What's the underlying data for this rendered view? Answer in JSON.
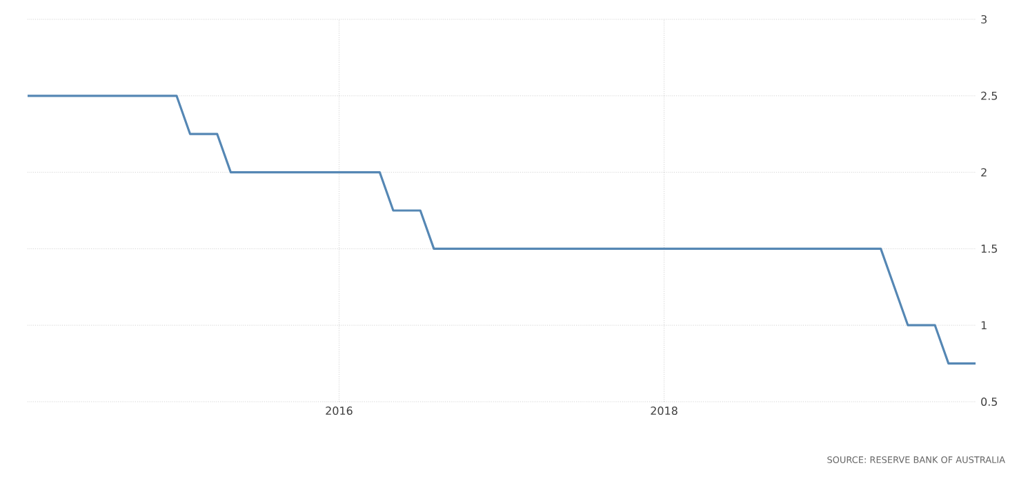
{
  "chart_data": {
    "type": "line",
    "x": [
      "2014-02",
      "2015-01",
      "2015-02",
      "2015-04",
      "2015-05",
      "2016-04",
      "2016-05",
      "2016-07",
      "2016-08",
      "2019-05",
      "2019-06",
      "2019-07",
      "2019-09",
      "2019-10",
      "2019-12"
    ],
    "series": [
      {
        "color": "#5587b4",
        "values": [
          2.5,
          2.5,
          2.25,
          2.25,
          2.0,
          2.0,
          1.75,
          1.75,
          1.5,
          1.5,
          1.25,
          1.0,
          1.0,
          0.75,
          0.75
        ]
      }
    ],
    "xlim": [
      "2014-02",
      "2019-12"
    ],
    "xticks": [
      "2016",
      "2018"
    ],
    "ylim": [
      0.5,
      3
    ],
    "yticks": [
      0.5,
      1,
      1.5,
      2,
      2.5,
      3
    ],
    "grid": true,
    "marker": "none",
    "line_style": "solid",
    "annotations": [
      "SOURCE: RESERVE BANK OF AUSTRALIA"
    ]
  }
}
